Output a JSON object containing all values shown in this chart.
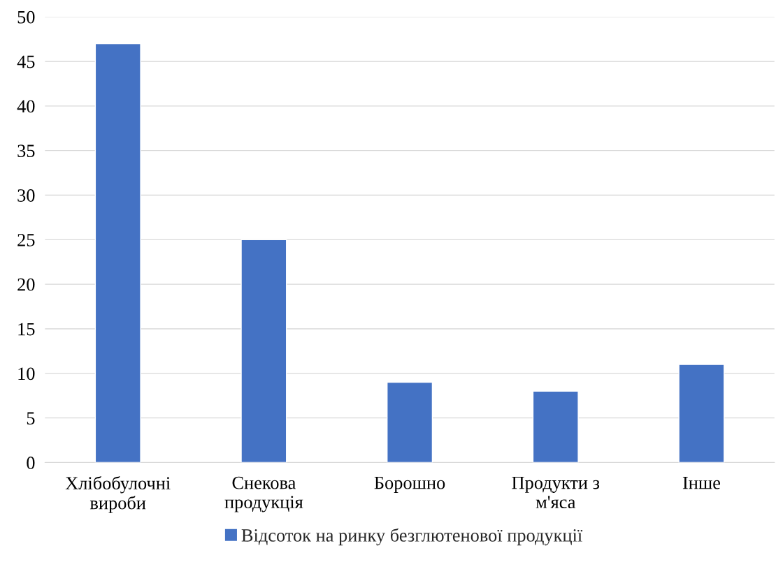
{
  "chart_data": {
    "type": "bar",
    "categories": [
      "Хлібобулочні\nвироби",
      "Снекова\nпродукція",
      "Борошно",
      "Продукти з\nм'яса",
      "Інше"
    ],
    "series": [
      {
        "name": "Відсоток на ринку безглютенової продукції",
        "color": "#4472c4",
        "values": [
          47,
          25,
          9,
          8,
          11
        ]
      }
    ],
    "ylim": [
      0,
      50
    ],
    "yticks": [
      0,
      5,
      10,
      15,
      20,
      25,
      30,
      35,
      40,
      45,
      50
    ],
    "grid": "y",
    "legend": "bottom"
  }
}
